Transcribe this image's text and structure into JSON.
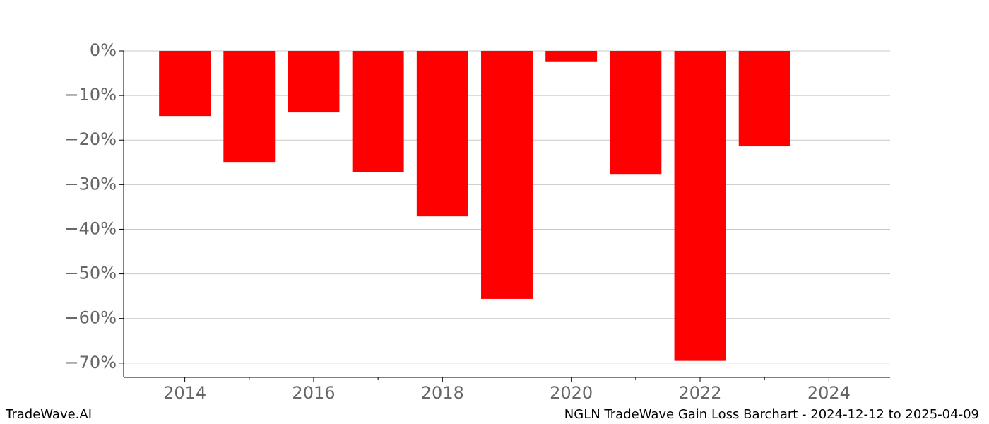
{
  "chart_data": {
    "type": "bar",
    "x": [
      2014,
      2015,
      2016,
      2017,
      2018,
      2019,
      2020,
      2021,
      2022,
      2023
    ],
    "values": [
      -14.6,
      -24.9,
      -13.8,
      -27.2,
      -37.1,
      -55.6,
      -2.5,
      -27.6,
      -69.5,
      -21.4
    ],
    "color": "#ff0000",
    "xlim": [
      2013.05,
      2024.95
    ],
    "xticks": [
      2014,
      2016,
      2018,
      2020,
      2022,
      2024
    ],
    "xminorticks": [
      2015,
      2017,
      2019,
      2021,
      2023
    ],
    "ylim": [
      -73.2,
      0
    ],
    "yticks": [
      {
        "value": 0,
        "label": "0%"
      },
      {
        "value": -10,
        "label": "−10%"
      },
      {
        "value": -20,
        "label": "−20%"
      },
      {
        "value": -30,
        "label": "−30%"
      },
      {
        "value": -40,
        "label": "−40%"
      },
      {
        "value": -50,
        "label": "−50%"
      },
      {
        "value": -60,
        "label": "−60%"
      },
      {
        "value": -70,
        "label": "−70%"
      }
    ],
    "grid": true,
    "footer_left": "TradeWave.AI",
    "footer_right": "NGLN TradeWave Gain Loss Barchart - 2024-12-12 to 2025-04-09"
  }
}
